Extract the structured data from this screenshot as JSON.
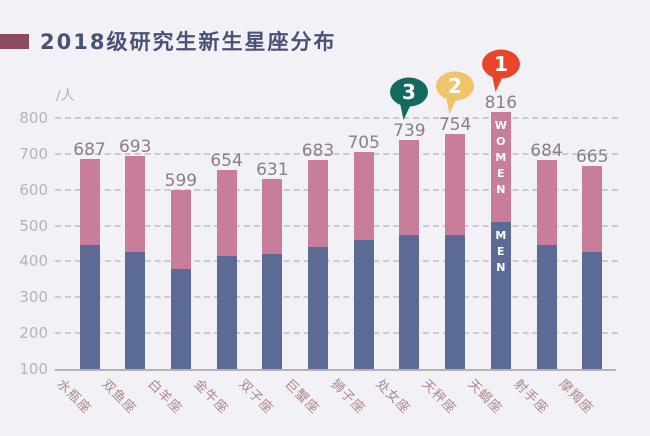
{
  "header": {
    "title": "2018级研究生新生星座分布"
  },
  "colors": {
    "background": "#f1f1f6",
    "title_text": "#4a5176",
    "title_marker": "#8c4a5f",
    "men_bar": "#5c6b96",
    "women_bar": "#c87d9c",
    "gridline": "#ccc9d0",
    "axis_line": "#b3b0b6",
    "y_tick_text": "#b6b3ba",
    "value_label_text": "#8b7f87",
    "x_label_text": "#ab8793",
    "segment_label_text": "#ffffff"
  },
  "chart_data": {
    "type": "bar",
    "stacked": true,
    "title": "2018级研究生新生星座分布",
    "categories": [
      "水瓶座",
      "双鱼座",
      "白羊座",
      "金牛座",
      "双子座",
      "巨蟹座",
      "狮子座",
      "处女座",
      "天秤座",
      "天蝎座",
      "射手座",
      "摩羯座"
    ],
    "totals": [
      687,
      693,
      599,
      654,
      631,
      683,
      705,
      739,
      754,
      816,
      684,
      665
    ],
    "series": [
      {
        "name": "MEN",
        "color": "#5c6b96",
        "values": [
          445,
          425,
          380,
          415,
          420,
          440,
          460,
          475,
          475,
          510,
          445,
          425
        ]
      },
      {
        "name": "WOMEN",
        "color": "#c87d9c",
        "values": [
          242,
          268,
          219,
          239,
          211,
          243,
          245,
          264,
          279,
          306,
          239,
          240
        ]
      }
    ],
    "series_note": "only stacked totals are labeled in the chart; per-segment values estimated from gridlines",
    "y_axis": {
      "unit": "/人",
      "min": 100,
      "max": 800,
      "step": 100,
      "ticks": [
        800,
        700,
        600,
        500,
        400,
        300,
        200,
        100
      ],
      "gridlines": "dashed"
    },
    "x_axis": {
      "label_rotation_deg": 45
    },
    "rank_badges": [
      {
        "rank": "1",
        "category": "天蝎座",
        "color": "#e7462b"
      },
      {
        "rank": "2",
        "category": "天秤座",
        "color": "#f0c46a"
      },
      {
        "rank": "3",
        "category": "处女座",
        "color": "#136a60"
      }
    ],
    "segment_labels": {
      "category": "天蝎座",
      "women": "WOMEN",
      "men": "MEN"
    },
    "legend": "none"
  }
}
